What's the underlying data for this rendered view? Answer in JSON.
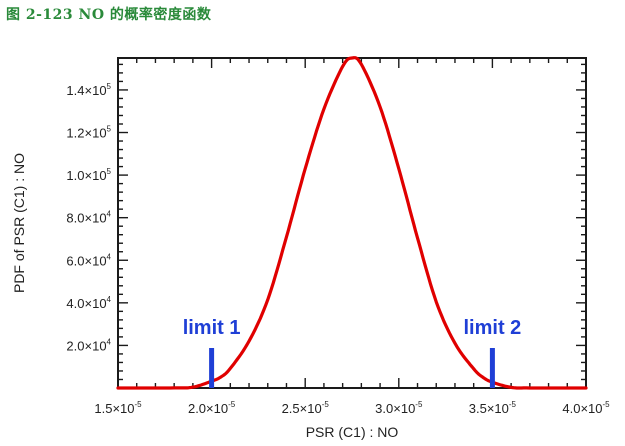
{
  "caption": "图 2-123 NO 的概率密度函数",
  "colors": {
    "curve": "#e00000",
    "limit": "#1f3fd6",
    "caption": "#2a8a3a"
  },
  "chart_data": {
    "type": "line",
    "xlabel": "PSR (C1) : NO",
    "ylabel": "PDF of PSR (C1) : NO",
    "xlim": [
      1.5e-05,
      4e-05
    ],
    "ylim": [
      0,
      155000
    ],
    "grid": false,
    "x_ticks": [
      {
        "value": 1.5e-05,
        "mantissa": "1.5",
        "exp": "-5"
      },
      {
        "value": 2e-05,
        "mantissa": "2.0",
        "exp": "-5"
      },
      {
        "value": 2.5e-05,
        "mantissa": "2.5",
        "exp": "-5"
      },
      {
        "value": 3e-05,
        "mantissa": "3.0",
        "exp": "-5"
      },
      {
        "value": 3.5e-05,
        "mantissa": "3.5",
        "exp": "-5"
      },
      {
        "value": 4e-05,
        "mantissa": "4.0",
        "exp": "-5"
      }
    ],
    "y_ticks": [
      {
        "value": 20000,
        "mantissa": "2.0",
        "exp": "4"
      },
      {
        "value": 40000,
        "mantissa": "4.0",
        "exp": "4"
      },
      {
        "value": 60000,
        "mantissa": "6.0",
        "exp": "4"
      },
      {
        "value": 80000,
        "mantissa": "8.0",
        "exp": "4"
      },
      {
        "value": 100000,
        "mantissa": "1.0",
        "exp": "5"
      },
      {
        "value": 120000,
        "mantissa": "1.2",
        "exp": "5"
      },
      {
        "value": 140000,
        "mantissa": "1.4",
        "exp": "5"
      }
    ],
    "series": [
      {
        "x": [
          1.5e-05,
          1.8e-05,
          1.9e-05,
          2e-05,
          2.05e-05,
          2.1e-05,
          2.2e-05,
          2.3e-05,
          2.4e-05,
          2.5e-05,
          2.6e-05,
          2.7e-05,
          2.75e-05,
          2.8e-05,
          2.9e-05,
          3e-05,
          3.1e-05,
          3.2e-05,
          3.3e-05,
          3.4e-05,
          3.45e-05,
          3.5e-05,
          3.6e-05,
          3.7e-05,
          4e-05
        ],
        "y": [
          0,
          30,
          400,
          3200,
          5200,
          9200,
          22000,
          41500,
          71000,
          103000,
          131000,
          151000,
          155000,
          152000,
          132000,
          103000,
          70500,
          40500,
          21000,
          9000,
          5000,
          2700,
          300,
          20,
          0
        ]
      }
    ],
    "annotations": [
      {
        "text": "limit 1",
        "x": 2e-05
      },
      {
        "text": "limit 2",
        "x": 3.5e-05
      }
    ]
  }
}
